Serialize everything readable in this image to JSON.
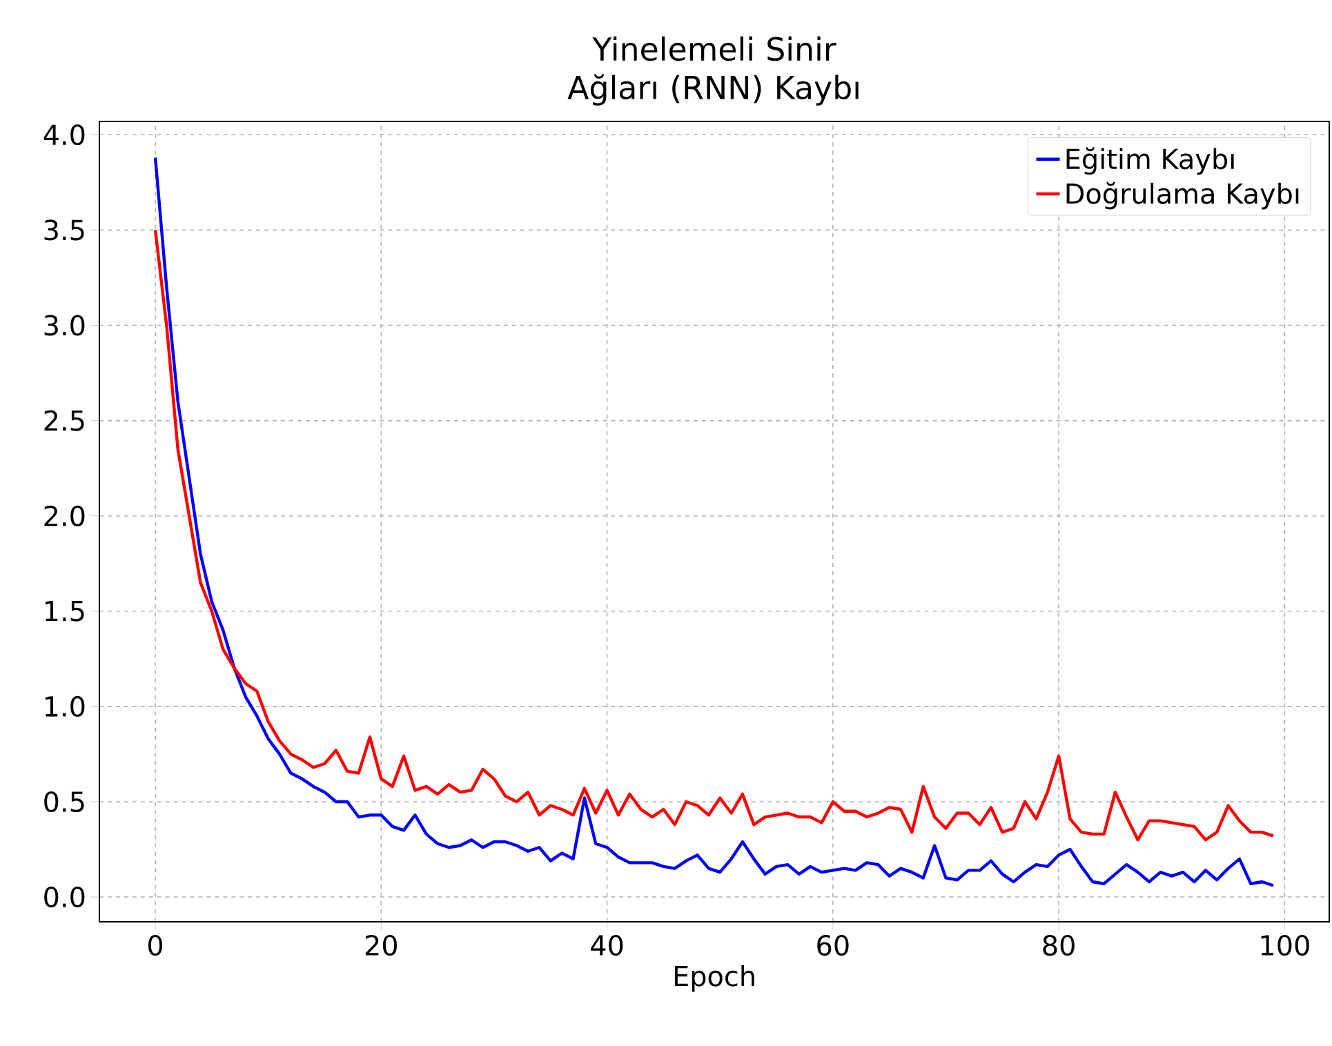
{
  "chart_data": {
    "type": "line",
    "title": "Yinelemeli Sinir Ağları (RNN) Kaybı",
    "xlabel": "Epoch",
    "x": [
      0,
      1,
      2,
      3,
      4,
      5,
      6,
      7,
      8,
      9,
      10,
      11,
      12,
      13,
      14,
      15,
      16,
      17,
      18,
      19,
      20,
      21,
      22,
      23,
      24,
      25,
      26,
      27,
      28,
      29,
      30,
      31,
      32,
      33,
      34,
      35,
      36,
      37,
      38,
      39,
      40,
      41,
      42,
      43,
      44,
      45,
      46,
      47,
      48,
      49,
      50,
      51,
      52,
      53,
      54,
      55,
      56,
      57,
      58,
      59,
      60,
      61,
      62,
      63,
      64,
      65,
      66,
      67,
      68,
      69,
      70,
      71,
      72,
      73,
      74,
      75,
      76,
      77,
      78,
      79,
      80,
      81,
      82,
      83,
      84,
      85,
      86,
      87,
      88,
      89,
      90,
      91,
      92,
      93,
      94,
      95,
      96,
      97,
      98,
      99
    ],
    "series": [
      {
        "name": "Eğitim Kaybı",
        "color": "#0000ff",
        "values": [
          3.88,
          3.2,
          2.6,
          2.2,
          1.8,
          1.55,
          1.4,
          1.2,
          1.05,
          0.95,
          0.83,
          0.75,
          0.65,
          0.62,
          0.58,
          0.55,
          0.5,
          0.5,
          0.42,
          0.43,
          0.43,
          0.37,
          0.35,
          0.43,
          0.33,
          0.28,
          0.26,
          0.27,
          0.3,
          0.26,
          0.29,
          0.29,
          0.27,
          0.24,
          0.26,
          0.19,
          0.23,
          0.2,
          0.52,
          0.28,
          0.26,
          0.21,
          0.18,
          0.18,
          0.18,
          0.16,
          0.15,
          0.19,
          0.22,
          0.15,
          0.13,
          0.2,
          0.29,
          0.2,
          0.12,
          0.16,
          0.17,
          0.12,
          0.16,
          0.13,
          0.14,
          0.15,
          0.14,
          0.18,
          0.17,
          0.11,
          0.15,
          0.13,
          0.1,
          0.27,
          0.1,
          0.09,
          0.14,
          0.14,
          0.19,
          0.12,
          0.08,
          0.13,
          0.17,
          0.16,
          0.22,
          0.25,
          0.16,
          0.08,
          0.07,
          0.12,
          0.17,
          0.13,
          0.08,
          0.13,
          0.11,
          0.13,
          0.08,
          0.14,
          0.09,
          0.15,
          0.2,
          0.07,
          0.08,
          0.06
        ]
      },
      {
        "name": "Doğrulama Kaybı",
        "color": "#ff0000",
        "values": [
          3.5,
          3.0,
          2.35,
          2.0,
          1.65,
          1.5,
          1.3,
          1.2,
          1.12,
          1.08,
          0.92,
          0.82,
          0.75,
          0.72,
          0.68,
          0.7,
          0.77,
          0.66,
          0.65,
          0.84,
          0.62,
          0.58,
          0.74,
          0.56,
          0.58,
          0.54,
          0.59,
          0.55,
          0.56,
          0.67,
          0.62,
          0.53,
          0.5,
          0.55,
          0.43,
          0.48,
          0.46,
          0.43,
          0.57,
          0.44,
          0.56,
          0.43,
          0.54,
          0.46,
          0.42,
          0.46,
          0.38,
          0.5,
          0.48,
          0.43,
          0.52,
          0.44,
          0.54,
          0.38,
          0.42,
          0.43,
          0.44,
          0.42,
          0.42,
          0.39,
          0.5,
          0.45,
          0.45,
          0.42,
          0.44,
          0.47,
          0.46,
          0.34,
          0.58,
          0.42,
          0.36,
          0.44,
          0.44,
          0.38,
          0.47,
          0.34,
          0.36,
          0.5,
          0.41,
          0.55,
          0.74,
          0.41,
          0.34,
          0.33,
          0.33,
          0.55,
          0.42,
          0.3,
          0.4,
          0.4,
          0.39,
          0.38,
          0.37,
          0.3,
          0.34,
          0.48,
          0.4,
          0.34,
          0.34,
          0.32
        ]
      }
    ],
    "xlim": [
      -4.95,
      103.95
    ],
    "ylim": [
      -0.13,
      4.07
    ],
    "xticks": [
      0,
      20,
      40,
      60,
      80,
      100
    ],
    "yticks": [
      {
        "value": 0,
        "label": "0.0"
      },
      {
        "value": 0.5,
        "label": "0.5"
      },
      {
        "value": 1,
        "label": "1.0"
      },
      {
        "value": 1.5,
        "label": "1.5"
      },
      {
        "value": 2,
        "label": "2.0"
      },
      {
        "value": 2.5,
        "label": "2.5"
      },
      {
        "value": 3,
        "label": "3.0"
      },
      {
        "value": 3.5,
        "label": "3.5"
      },
      {
        "value": 4,
        "label": "4.0"
      }
    ],
    "grid": true,
    "legend": "top right",
    "marker": "none",
    "line_style": "solid"
  }
}
